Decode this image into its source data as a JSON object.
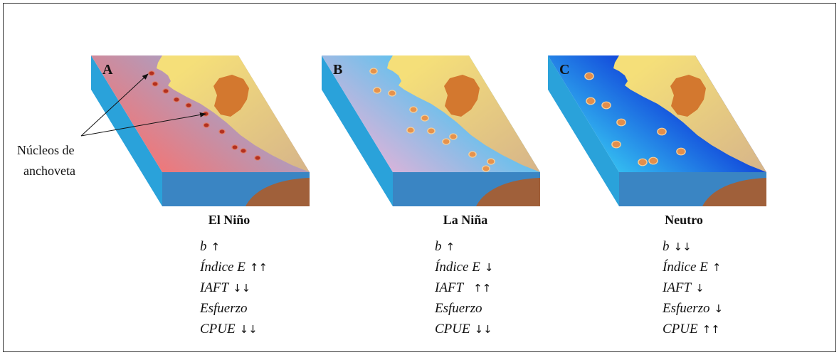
{
  "annotation": {
    "lines": [
      "Núcleos de",
      "anchoveta"
    ]
  },
  "panels": [
    {
      "label": "A",
      "caption": "El Niño",
      "indicators": [
        {
          "name": "b",
          "arrows": "↑"
        },
        {
          "name": "Índice E",
          "arrows": "↑↑"
        },
        {
          "name": "IAFT",
          "arrows": "↓↓"
        },
        {
          "name": "Esfuerzo"
        },
        {
          "name": "CPUE",
          "arrows": "↓↓"
        }
      ]
    },
    {
      "label": "B",
      "caption": "La Niña",
      "indicators": [
        {
          "name": "b",
          "arrows": "↑"
        },
        {
          "name": "Índice E",
          "arrows": "↓"
        },
        {
          "name": "IAFT",
          "arrows": "↑↑"
        },
        {
          "name": "Esfuerzo"
        },
        {
          "name": "CPUE",
          "arrows": "↓↓"
        }
      ]
    },
    {
      "label": "C",
      "caption": "Neutro",
      "indicators": [
        {
          "name": "b",
          "arrows": "↓↓"
        },
        {
          "name": "Índice E",
          "arrows": "↑"
        },
        {
          "name": "IAFT",
          "arrows": "↓"
        },
        {
          "name": "Esfuerzo",
          "arrows": "↓"
        },
        {
          "name": "CPUE",
          "arrows": "↑↑"
        }
      ]
    }
  ],
  "colors": {
    "frame": "#333333",
    "land_light": "#f5df79",
    "land_dark": "#d6b48a",
    "highland": "#d3782f",
    "side_face": "#2aa2da",
    "front_face": "#3a85c3",
    "land_section": "#a0603a",
    "water": [
      [
        "#f27676",
        "#a4a3ca"
      ],
      [
        "#ddb3d9",
        "#4dc3f1"
      ],
      [
        "#36c3f2",
        "#0b2fd6"
      ]
    ],
    "nucleus_core": [
      "#b3301f",
      "#e6924c",
      "#e38e4b"
    ],
    "nucleus_halo": [
      "#df7f6c",
      "#f6cf98",
      "#f6cf98"
    ]
  }
}
